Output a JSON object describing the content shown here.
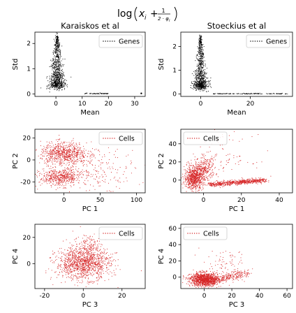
{
  "figure": {
    "suptitle_main": "log",
    "suptitle_var": "x",
    "suptitle_sub": "i",
    "suptitle_plus": "+",
    "suptitle_num": "1",
    "suptitle_den": "2 · φ",
    "suptitle_den_sub": "i"
  },
  "chart_data": [
    {
      "id": "p1",
      "type": "scatter",
      "title": "Karaiskos et al",
      "xlabel": "Mean",
      "ylabel": "Std",
      "xlim": [
        -8,
        34
      ],
      "ylim": [
        -0.1,
        2.45
      ],
      "xticks": [
        0,
        10,
        20,
        30
      ],
      "yticks": [
        0,
        1,
        2
      ],
      "legend": "Genes",
      "legend_position": "top-right",
      "color": "#000000",
      "marker": "dot",
      "clusters": [
        {
          "shape": "cone",
          "center": [
            0.5,
            0.3
          ],
          "xspan": 6,
          "ymax": 2.3,
          "n": 900
        },
        {
          "shape": "strip",
          "x": [
            11,
            20
          ],
          "y": 0.0,
          "n": 60
        },
        {
          "shape": "point",
          "x": 32.5,
          "y": 0.02
        }
      ]
    },
    {
      "id": "p2",
      "type": "scatter",
      "title": "Stoeckius et al",
      "xlabel": "Mean",
      "ylabel": "Std",
      "xlim": [
        -8,
        37
      ],
      "ylim": [
        -0.1,
        2.6
      ],
      "xticks": [
        0,
        20
      ],
      "yticks": [
        0,
        1,
        2
      ],
      "legend": "Genes",
      "legend_position": "top-right",
      "color": "#000000",
      "marker": "dot",
      "clusters": [
        {
          "shape": "cone",
          "center": [
            0.0,
            0.3
          ],
          "xspan": 5.5,
          "ymax": 2.4,
          "n": 900
        },
        {
          "shape": "strip",
          "x": [
            5,
            35
          ],
          "y": 0.0,
          "n": 140
        }
      ]
    },
    {
      "id": "p3",
      "type": "scatter",
      "xlabel": "PC 1",
      "ylabel": "PC 2",
      "xlim": [
        -40,
        112
      ],
      "ylim": [
        -30,
        28
      ],
      "xticks": [
        0,
        50,
        100
      ],
      "yticks": [
        -20,
        0,
        20
      ],
      "legend": "Cells",
      "legend_position": "top-right",
      "color": "#d62728",
      "marker": "dot",
      "clusters": [
        {
          "shape": "blob",
          "center": [
            0,
            6
          ],
          "sx": 16,
          "sy": 5,
          "n": 700
        },
        {
          "shape": "blob",
          "center": [
            -5,
            -16
          ],
          "sx": 14,
          "sy": 4,
          "n": 500
        },
        {
          "shape": "blob",
          "center": [
            45,
            -8
          ],
          "sx": 28,
          "sy": 9,
          "n": 220
        }
      ]
    },
    {
      "id": "p4",
      "type": "scatter",
      "xlabel": "PC 1",
      "ylabel": "PC 2",
      "xlim": [
        -12,
        47
      ],
      "ylim": [
        -14,
        56
      ],
      "xticks": [
        0,
        20,
        40
      ],
      "yticks": [
        0,
        20,
        40
      ],
      "legend": "Cells",
      "legend_position": "top-left",
      "color": "#d62728",
      "marker": "dot",
      "clusters": [
        {
          "shape": "blob",
          "center": [
            -5,
            2
          ],
          "sx": 2.5,
          "sy": 6,
          "n": 700
        },
        {
          "shape": "blob",
          "center": [
            0,
            12
          ],
          "sx": 3,
          "sy": 6,
          "n": 300
        },
        {
          "shape": "line",
          "from": [
            3,
            -5
          ],
          "to": [
            33,
            0
          ],
          "spread": 1.3,
          "n": 650
        },
        {
          "shape": "blob",
          "center": [
            10,
            25
          ],
          "sx": 8,
          "sy": 12,
          "n": 90
        }
      ]
    },
    {
      "id": "p5",
      "type": "scatter",
      "xlabel": "PC 3",
      "ylabel": "PC 4",
      "xlim": [
        -25,
        32
      ],
      "ylim": [
        -19,
        30
      ],
      "xticks": [
        -20,
        0,
        20
      ],
      "yticks": [
        0,
        20
      ],
      "legend": "Cells",
      "legend_position": "top-right",
      "color": "#d62728",
      "marker": "dot",
      "clusters": [
        {
          "shape": "blob",
          "center": [
            0,
            0
          ],
          "sx": 7,
          "sy": 6,
          "n": 1200
        },
        {
          "shape": "blob",
          "center": [
            3,
            14
          ],
          "sx": 4,
          "sy": 5,
          "n": 150
        }
      ]
    },
    {
      "id": "p6",
      "type": "scatter",
      "xlabel": "PC 3",
      "ylabel": "PC 4",
      "xlim": [
        -17,
        64
      ],
      "ylim": [
        -14,
        65
      ],
      "xticks": [
        0,
        20,
        40,
        60
      ],
      "yticks": [
        0,
        20,
        40,
        60
      ],
      "legend": "Cells",
      "legend_position": "top-left",
      "color": "#d62728",
      "marker": "dot",
      "clusters": [
        {
          "shape": "blob",
          "center": [
            0,
            -3
          ],
          "sx": 5,
          "sy": 4,
          "n": 1200
        },
        {
          "shape": "line",
          "from": [
            3,
            -6
          ],
          "to": [
            30,
            5
          ],
          "spread": 2.5,
          "n": 300
        },
        {
          "shape": "blob",
          "center": [
            15,
            15
          ],
          "sx": 9,
          "sy": 9,
          "n": 80
        }
      ]
    }
  ]
}
